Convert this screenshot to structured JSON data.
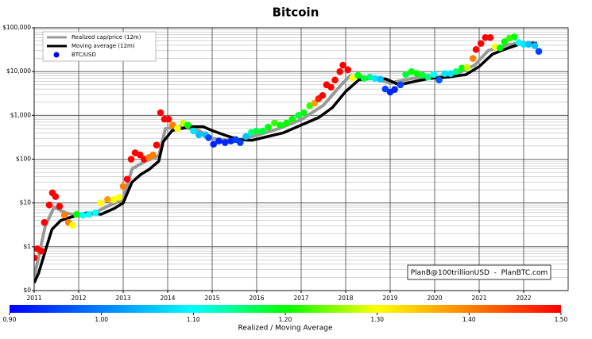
{
  "chart_data": {
    "type": "line",
    "title": "Bitcoin",
    "log_y": true,
    "grid": true,
    "xlim": [
      2011,
      2023
    ],
    "xticks": [
      2011,
      2012,
      2013,
      2014,
      2015,
      2016,
      2017,
      2018,
      2019,
      2020,
      2021,
      2022
    ],
    "ylim": [
      0.1,
      100000
    ],
    "yticks": [
      {
        "value": 0.1,
        "label": "$0"
      },
      {
        "value": 1,
        "label": "$1"
      },
      {
        "value": 10,
        "label": "$10"
      },
      {
        "value": 100,
        "label": "$100"
      },
      {
        "value": 1000,
        "label": "$1,000"
      },
      {
        "value": 10000,
        "label": "$10,000"
      },
      {
        "value": 100000,
        "label": "$100,000"
      }
    ],
    "legend": "upper left",
    "annotation": "PlanB@100trillionUSD  -  PlanBTC.com",
    "series": [
      {
        "name": "Realized cap/price (12m)",
        "kind": "line",
        "color": "#999999",
        "x": [
          2011.0,
          2011.25,
          2011.45,
          2011.7,
          2012.0,
          2012.3,
          2012.6,
          2013.0,
          2013.2,
          2013.5,
          2013.8,
          2013.95,
          2014.3,
          2014.7,
          2015.0,
          2015.5,
          2016.0,
          2016.5,
          2017.0,
          2017.5,
          2017.9,
          2018.1,
          2018.6,
          2019.0,
          2019.5,
          2020.0,
          2020.5,
          2020.9,
          2021.2,
          2021.6,
          2021.9,
          2022.2,
          2022.3
        ],
        "values": [
          0.2,
          3,
          8,
          6,
          5,
          5.5,
          8,
          12,
          60,
          90,
          120,
          500,
          550,
          450,
          300,
          260,
          350,
          500,
          800,
          1700,
          5000,
          8000,
          7000,
          5500,
          7000,
          7500,
          9000,
          14000,
          30000,
          40000,
          45000,
          40000,
          38000
        ]
      },
      {
        "name": "Moving average (12m)",
        "kind": "line",
        "color": "#000000",
        "x": [
          2011.0,
          2011.1,
          2011.25,
          2011.4,
          2011.6,
          2011.9,
          2012.2,
          2012.5,
          2012.8,
          2013.0,
          2013.2,
          2013.4,
          2013.6,
          2013.8,
          2013.9,
          2014.1,
          2014.5,
          2014.8,
          2015.0,
          2015.3,
          2015.6,
          2015.9,
          2016.2,
          2016.6,
          2017.0,
          2017.4,
          2017.7,
          2018.0,
          2018.3,
          2018.6,
          2018.9,
          2019.2,
          2019.5,
          2019.9,
          2020.3,
          2020.7,
          2021.0,
          2021.3,
          2021.6,
          2021.9,
          2022.2,
          2022.3
        ],
        "values": [
          0.15,
          0.25,
          0.8,
          2.5,
          4,
          5,
          6,
          5.5,
          7.5,
          10,
          30,
          45,
          60,
          90,
          250,
          450,
          550,
          550,
          450,
          350,
          280,
          270,
          320,
          400,
          600,
          900,
          1500,
          3500,
          6500,
          7000,
          6800,
          5000,
          5800,
          7000,
          7500,
          8500,
          13000,
          25000,
          33000,
          42000,
          45000,
          44000
        ]
      },
      {
        "name": "BTC/USD",
        "kind": "scatter",
        "color": "#0000ff",
        "x": [
          2011.0,
          2011.07,
          2011.16,
          2011.23,
          2011.34,
          2011.41,
          2011.48,
          2011.57,
          2011.68,
          2011.77,
          2011.86,
          2011.95,
          2012.09,
          2012.23,
          2012.38,
          2012.5,
          2012.65,
          2012.79,
          2012.91,
          2013.0,
          2013.09,
          2013.18,
          2013.27,
          2013.38,
          2013.47,
          2013.58,
          2013.67,
          2013.75,
          2013.84,
          2013.93,
          2014.02,
          2014.11,
          2014.22,
          2014.35,
          2014.45,
          2014.58,
          2014.7,
          2014.85,
          2014.92,
          2015.03,
          2015.15,
          2015.29,
          2015.42,
          2015.53,
          2015.63,
          2015.76,
          2015.88,
          2015.99,
          2016.13,
          2016.26,
          2016.4,
          2016.53,
          2016.67,
          2016.8,
          2016.94,
          2017.06,
          2017.19,
          2017.3,
          2017.39,
          2017.48,
          2017.57,
          2017.67,
          2017.76,
          2017.87,
          2017.94,
          2018.05,
          2018.16,
          2018.28,
          2018.41,
          2018.54,
          2018.66,
          2018.78,
          2018.89,
          2019.0,
          2019.1,
          2019.23,
          2019.35,
          2019.48,
          2019.6,
          2019.73,
          2019.85,
          2019.98,
          2020.1,
          2020.23,
          2020.36,
          2020.48,
          2020.61,
          2020.73,
          2020.86,
          2020.93,
          2021.04,
          2021.14,
          2021.25,
          2021.36,
          2021.47,
          2021.57,
          2021.68,
          2021.79,
          2021.89,
          2022.0,
          2022.11,
          2022.25,
          2022.34
        ],
        "values": [
          0.56,
          0.9,
          0.8,
          3.6,
          9,
          17,
          14,
          8.4,
          5.3,
          3.6,
          3.1,
          5.5,
          5.3,
          5.5,
          6,
          10,
          12,
          12,
          13.5,
          24,
          35,
          100,
          140,
          125,
          100,
          110,
          125,
          210,
          1150,
          820,
          820,
          600,
          500,
          670,
          600,
          440,
          360,
          360,
          310,
          220,
          260,
          240,
          260,
          280,
          240,
          330,
          410,
          440,
          440,
          540,
          670,
          600,
          670,
          820,
          1000,
          1150,
          1650,
          1900,
          2400,
          2850,
          5000,
          4400,
          6400,
          10000,
          14000,
          11000,
          7200,
          8200,
          7000,
          7500,
          7000,
          6700,
          4000,
          3400,
          3900,
          5000,
          8600,
          10000,
          9000,
          8200,
          7500,
          8600,
          6400,
          9000,
          9000,
          10000,
          12000,
          12500,
          20000,
          32000,
          44000,
          60000,
          60000,
          37000,
          35000,
          48000,
          58000,
          62000,
          46000,
          42000,
          42000,
          39000,
          29000
        ],
        "ratio": [
          1.5,
          1.5,
          1.5,
          1.5,
          1.5,
          1.5,
          1.5,
          1.5,
          1.4,
          1.4,
          1.3,
          1.2,
          1.1,
          1.1,
          1.1,
          1.3,
          1.38,
          1.3,
          1.3,
          1.4,
          1.5,
          1.5,
          1.5,
          1.5,
          1.5,
          1.4,
          1.4,
          1.5,
          1.5,
          1.5,
          1.5,
          1.4,
          1.3,
          1.28,
          1.2,
          1.08,
          1.05,
          1.05,
          0.95,
          0.93,
          0.93,
          0.93,
          0.93,
          0.95,
          0.95,
          1.05,
          1.15,
          1.18,
          1.18,
          1.2,
          1.22,
          1.2,
          1.2,
          1.2,
          1.18,
          1.2,
          1.22,
          1.38,
          1.48,
          1.5,
          1.5,
          1.5,
          1.5,
          1.5,
          1.5,
          1.5,
          1.3,
          1.2,
          1.18,
          1.15,
          1.08,
          1.05,
          0.95,
          0.93,
          0.93,
          0.95,
          1.18,
          1.2,
          1.2,
          1.18,
          1.15,
          1.1,
          0.97,
          1.08,
          1.08,
          1.15,
          1.2,
          1.28,
          1.4,
          1.5,
          1.5,
          1.5,
          1.5,
          1.3,
          1.2,
          1.2,
          1.22,
          1.2,
          1.1,
          1.08,
          1.05,
          1.05,
          0.95
        ]
      }
    ],
    "colorbar": {
      "label": "Realized / Moving Average",
      "lim": [
        0.9,
        1.5
      ],
      "colors": [
        "#0000ff",
        "#0080ff",
        "#00ffff",
        "#00ff00",
        "#ffff00",
        "#ff8000",
        "#ff0000"
      ],
      "ticks": [
        {
          "value": 0.9,
          "label": "0.90"
        },
        {
          "value": 1.0,
          "label": "1.00"
        },
        {
          "value": 1.1,
          "label": "1.10"
        },
        {
          "value": 1.2,
          "label": "1.20"
        },
        {
          "value": 1.3,
          "label": "1.30"
        },
        {
          "value": 1.4,
          "label": "1.40"
        },
        {
          "value": 1.5,
          "label": "1.50"
        }
      ]
    }
  }
}
